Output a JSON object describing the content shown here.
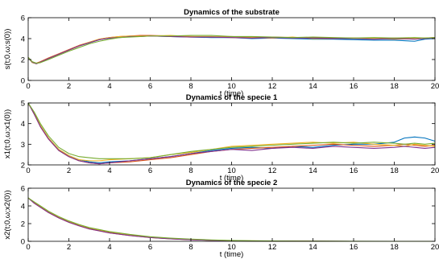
{
  "chart_data": [
    {
      "type": "line",
      "title": "Dynamics of the substrate",
      "xlabel": "t (time)",
      "ylabel": "s(t;0,ω;s(0))",
      "xlim": [
        0,
        20
      ],
      "ylim": [
        0,
        6
      ],
      "xticks": [
        0,
        2,
        4,
        6,
        8,
        10,
        12,
        14,
        16,
        18,
        20
      ],
      "yticks": [
        0,
        2,
        4,
        6
      ],
      "grid": false,
      "series": [
        {
          "color": "#0072BD",
          "x": [
            0,
            0.2,
            0.4,
            0.6,
            1,
            1.5,
            2,
            2.5,
            3,
            3.5,
            4,
            4.5,
            5,
            5.5,
            6,
            7,
            8,
            9,
            10,
            11,
            12,
            13,
            14,
            15,
            16,
            17,
            18,
            19,
            19.5,
            20
          ],
          "y": [
            2.2,
            1.7,
            1.6,
            1.75,
            2.1,
            2.5,
            2.9,
            3.3,
            3.6,
            3.9,
            4.05,
            4.15,
            4.2,
            4.25,
            4.25,
            4.2,
            4.15,
            4.1,
            4.1,
            4.0,
            4.05,
            4.0,
            3.95,
            3.95,
            3.9,
            3.85,
            3.85,
            3.75,
            3.95,
            4.0
          ]
        },
        {
          "color": "#D95319",
          "x": [
            0,
            0.2,
            0.4,
            0.6,
            1,
            1.5,
            2,
            2.5,
            3,
            3.5,
            4,
            4.5,
            5,
            5.5,
            6,
            7,
            8,
            9,
            10,
            11,
            12,
            13,
            14,
            15,
            16,
            17,
            18,
            19,
            19.5,
            20
          ],
          "y": [
            2.2,
            1.75,
            1.65,
            1.8,
            2.15,
            2.55,
            2.95,
            3.35,
            3.65,
            3.95,
            4.1,
            4.2,
            4.25,
            4.3,
            4.3,
            4.25,
            4.2,
            4.15,
            4.2,
            4.1,
            4.15,
            4.1,
            4.1,
            4.05,
            4.05,
            4.0,
            4.05,
            4.0,
            4.05,
            4.1
          ]
        },
        {
          "color": "#EDB120",
          "x": [
            0,
            0.2,
            0.4,
            0.6,
            1,
            1.5,
            2,
            2.5,
            3,
            3.5,
            4,
            4.5,
            5,
            5.5,
            6,
            7,
            8,
            9,
            10,
            11,
            12,
            13,
            14,
            15,
            16,
            17,
            18,
            19,
            19.5,
            20
          ],
          "y": [
            2.2,
            1.7,
            1.6,
            1.75,
            2.1,
            2.5,
            2.9,
            3.3,
            3.65,
            3.95,
            4.1,
            4.2,
            4.25,
            4.25,
            4.25,
            4.3,
            4.2,
            4.2,
            4.1,
            4.1,
            4.05,
            4.15,
            4.0,
            4.0,
            4.05,
            4.0,
            3.95,
            4.0,
            4.05,
            4.05
          ]
        },
        {
          "color": "#7E2F8E",
          "x": [
            0,
            0.2,
            0.4,
            0.6,
            1,
            1.5,
            2,
            2.5,
            3,
            3.5,
            4,
            4.5,
            5,
            5.5,
            6,
            7,
            8,
            9,
            10,
            11,
            12,
            13,
            14,
            15,
            16,
            17,
            18,
            19,
            19.5,
            20
          ],
          "y": [
            2.2,
            1.75,
            1.6,
            1.75,
            2.1,
            2.5,
            2.9,
            3.3,
            3.6,
            3.9,
            4.05,
            4.1,
            4.2,
            4.2,
            4.25,
            4.2,
            4.15,
            4.15,
            4.1,
            4.05,
            4.1,
            4.05,
            4.05,
            4.0,
            4.0,
            3.95,
            4.0,
            3.95,
            4.0,
            4.05
          ]
        },
        {
          "color": "#77AC30",
          "x": [
            0,
            0.2,
            0.4,
            0.6,
            1,
            1.5,
            2,
            2.5,
            3,
            3.5,
            4,
            4.5,
            5,
            5.5,
            6,
            7,
            8,
            9,
            10,
            11,
            12,
            13,
            14,
            15,
            16,
            17,
            18,
            19,
            19.5,
            20
          ],
          "y": [
            2.2,
            1.8,
            1.65,
            1.7,
            2.0,
            2.4,
            2.8,
            3.15,
            3.5,
            3.75,
            3.95,
            4.1,
            4.15,
            4.2,
            4.25,
            4.25,
            4.3,
            4.3,
            4.2,
            4.2,
            4.15,
            4.1,
            4.15,
            4.1,
            4.05,
            4.1,
            4.05,
            4.1,
            4.05,
            4.1
          ]
        }
      ]
    },
    {
      "type": "line",
      "title": "Dynamics of the specie 1",
      "xlabel": "t (time)",
      "ylabel": "x1(t;0,ω;x1(0))",
      "xlim": [
        0,
        20
      ],
      "ylim": [
        2,
        5
      ],
      "xticks": [
        0,
        2,
        4,
        6,
        8,
        10,
        12,
        14,
        16,
        18,
        20
      ],
      "yticks": [
        2,
        3,
        4,
        5
      ],
      "grid": false,
      "series": [
        {
          "color": "#0072BD",
          "x": [
            0,
            0.3,
            0.6,
            1,
            1.5,
            2,
            2.5,
            3,
            3.5,
            4,
            5,
            6,
            7,
            8,
            9,
            10,
            11,
            12,
            13,
            14,
            15,
            16,
            17,
            18,
            18.5,
            19,
            19.5,
            20
          ],
          "y": [
            5.0,
            4.5,
            3.9,
            3.3,
            2.75,
            2.45,
            2.25,
            2.15,
            2.1,
            2.15,
            2.2,
            2.3,
            2.4,
            2.55,
            2.7,
            2.8,
            2.85,
            2.8,
            2.9,
            2.85,
            2.95,
            3.0,
            3.0,
            3.1,
            3.3,
            3.35,
            3.3,
            3.15
          ]
        },
        {
          "color": "#D95319",
          "x": [
            0,
            0.3,
            0.6,
            1,
            1.5,
            2,
            2.5,
            3,
            3.5,
            4,
            5,
            6,
            7,
            8,
            9,
            10,
            11,
            12,
            13,
            14,
            15,
            16,
            17,
            18,
            18.5,
            19,
            19.5,
            20
          ],
          "y": [
            5.0,
            4.45,
            3.85,
            3.25,
            2.7,
            2.4,
            2.2,
            2.1,
            2.05,
            2.1,
            2.15,
            2.25,
            2.35,
            2.5,
            2.65,
            2.75,
            2.8,
            2.85,
            2.9,
            2.95,
            3.0,
            2.95,
            2.9,
            2.95,
            3.0,
            2.95,
            2.9,
            2.95
          ]
        },
        {
          "color": "#EDB120",
          "x": [
            0,
            0.3,
            0.6,
            1,
            1.5,
            2,
            2.5,
            3,
            3.5,
            4,
            5,
            6,
            7,
            8,
            9,
            10,
            11,
            12,
            13,
            14,
            15,
            16,
            17,
            18,
            18.5,
            19,
            19.5,
            20
          ],
          "y": [
            5.0,
            4.5,
            3.9,
            3.3,
            2.75,
            2.45,
            2.25,
            2.2,
            2.2,
            2.25,
            2.3,
            2.35,
            2.5,
            2.6,
            2.75,
            2.9,
            2.95,
            3.0,
            3.05,
            3.1,
            3.05,
            3.1,
            3.0,
            2.95,
            2.9,
            3.0,
            2.95,
            2.9
          ]
        },
        {
          "color": "#7E2F8E",
          "x": [
            0,
            0.3,
            0.6,
            1,
            1.5,
            2,
            2.5,
            3,
            3.5,
            4,
            5,
            6,
            7,
            8,
            9,
            10,
            11,
            12,
            13,
            14,
            15,
            16,
            17,
            18,
            18.5,
            19,
            19.5,
            20
          ],
          "y": [
            5.0,
            4.45,
            3.85,
            3.25,
            2.7,
            2.4,
            2.2,
            2.1,
            2.05,
            2.1,
            2.2,
            2.3,
            2.4,
            2.55,
            2.65,
            2.75,
            2.7,
            2.8,
            2.85,
            2.8,
            2.9,
            2.85,
            2.8,
            2.85,
            2.9,
            2.85,
            2.8,
            2.85
          ]
        },
        {
          "color": "#77AC30",
          "x": [
            0,
            0.3,
            0.6,
            1,
            1.5,
            2,
            2.5,
            3,
            3.5,
            4,
            5,
            6,
            7,
            8,
            9,
            10,
            11,
            12,
            13,
            14,
            15,
            16,
            17,
            18,
            18.5,
            19,
            19.5,
            20
          ],
          "y": [
            5.0,
            4.55,
            4.0,
            3.4,
            2.85,
            2.55,
            2.4,
            2.35,
            2.3,
            2.3,
            2.3,
            2.35,
            2.5,
            2.65,
            2.75,
            2.85,
            2.9,
            2.95,
            3.0,
            3.05,
            3.1,
            3.05,
            3.1,
            3.05,
            3.0,
            3.05,
            3.0,
            3.05
          ]
        }
      ]
    },
    {
      "type": "line",
      "title": "Dynamics of the specie 2",
      "xlabel": "t (time)",
      "ylabel": "x2(t;0,ω;x2(0))",
      "xlim": [
        0,
        20
      ],
      "ylim": [
        0,
        6
      ],
      "xticks": [
        0,
        2,
        4,
        6,
        8,
        10,
        12,
        14,
        16,
        18,
        20
      ],
      "yticks": [
        0,
        2,
        4,
        6
      ],
      "grid": false,
      "series": [
        {
          "color": "#0072BD",
          "x": [
            0,
            0.3,
            0.6,
            1,
            1.5,
            2,
            2.5,
            3,
            4,
            5,
            6,
            7,
            8,
            9,
            10,
            11,
            12,
            14,
            16,
            18,
            20
          ],
          "y": [
            4.9,
            4.35,
            3.9,
            3.3,
            2.7,
            2.2,
            1.8,
            1.45,
            1.0,
            0.7,
            0.45,
            0.3,
            0.2,
            0.12,
            0.07,
            0.04,
            0.02,
            0.01,
            0.0,
            0.0,
            0.0
          ]
        },
        {
          "color": "#D95319",
          "x": [
            0,
            0.3,
            0.6,
            1,
            1.5,
            2,
            2.5,
            3,
            4,
            5,
            6,
            7,
            8,
            9,
            10,
            11,
            12,
            14,
            16,
            18,
            20
          ],
          "y": [
            4.9,
            4.3,
            3.85,
            3.25,
            2.65,
            2.15,
            1.75,
            1.4,
            0.95,
            0.65,
            0.42,
            0.28,
            0.18,
            0.11,
            0.06,
            0.03,
            0.02,
            0.01,
            0.0,
            0.0,
            0.0
          ]
        },
        {
          "color": "#EDB120",
          "x": [
            0,
            0.3,
            0.6,
            1,
            1.5,
            2,
            2.5,
            3,
            4,
            5,
            6,
            7,
            8,
            9,
            10,
            11,
            12,
            14,
            16,
            18,
            20
          ],
          "y": [
            4.9,
            4.4,
            3.95,
            3.35,
            2.75,
            2.25,
            1.85,
            1.5,
            1.05,
            0.72,
            0.48,
            0.32,
            0.21,
            0.13,
            0.08,
            0.05,
            0.03,
            0.01,
            0.0,
            0.0,
            0.0
          ]
        },
        {
          "color": "#7E2F8E",
          "x": [
            0,
            0.3,
            0.6,
            1,
            1.5,
            2,
            2.5,
            3,
            4,
            5,
            6,
            7,
            8,
            9,
            10,
            11,
            12,
            14,
            16,
            18,
            20
          ],
          "y": [
            4.9,
            4.3,
            3.85,
            3.25,
            2.65,
            2.15,
            1.75,
            1.4,
            0.95,
            0.65,
            0.42,
            0.28,
            0.18,
            0.11,
            0.06,
            0.03,
            0.02,
            0.01,
            0.0,
            0.0,
            0.0
          ]
        },
        {
          "color": "#77AC30",
          "x": [
            0,
            0.3,
            0.6,
            1,
            1.5,
            2,
            2.5,
            3,
            4,
            5,
            6,
            7,
            8,
            9,
            10,
            11,
            12,
            14,
            16,
            18,
            20
          ],
          "y": [
            4.9,
            4.45,
            4.0,
            3.4,
            2.8,
            2.3,
            1.9,
            1.55,
            1.1,
            0.78,
            0.52,
            0.36,
            0.25,
            0.16,
            0.1,
            0.06,
            0.04,
            0.02,
            0.01,
            0.0,
            0.0
          ]
        }
      ]
    }
  ]
}
